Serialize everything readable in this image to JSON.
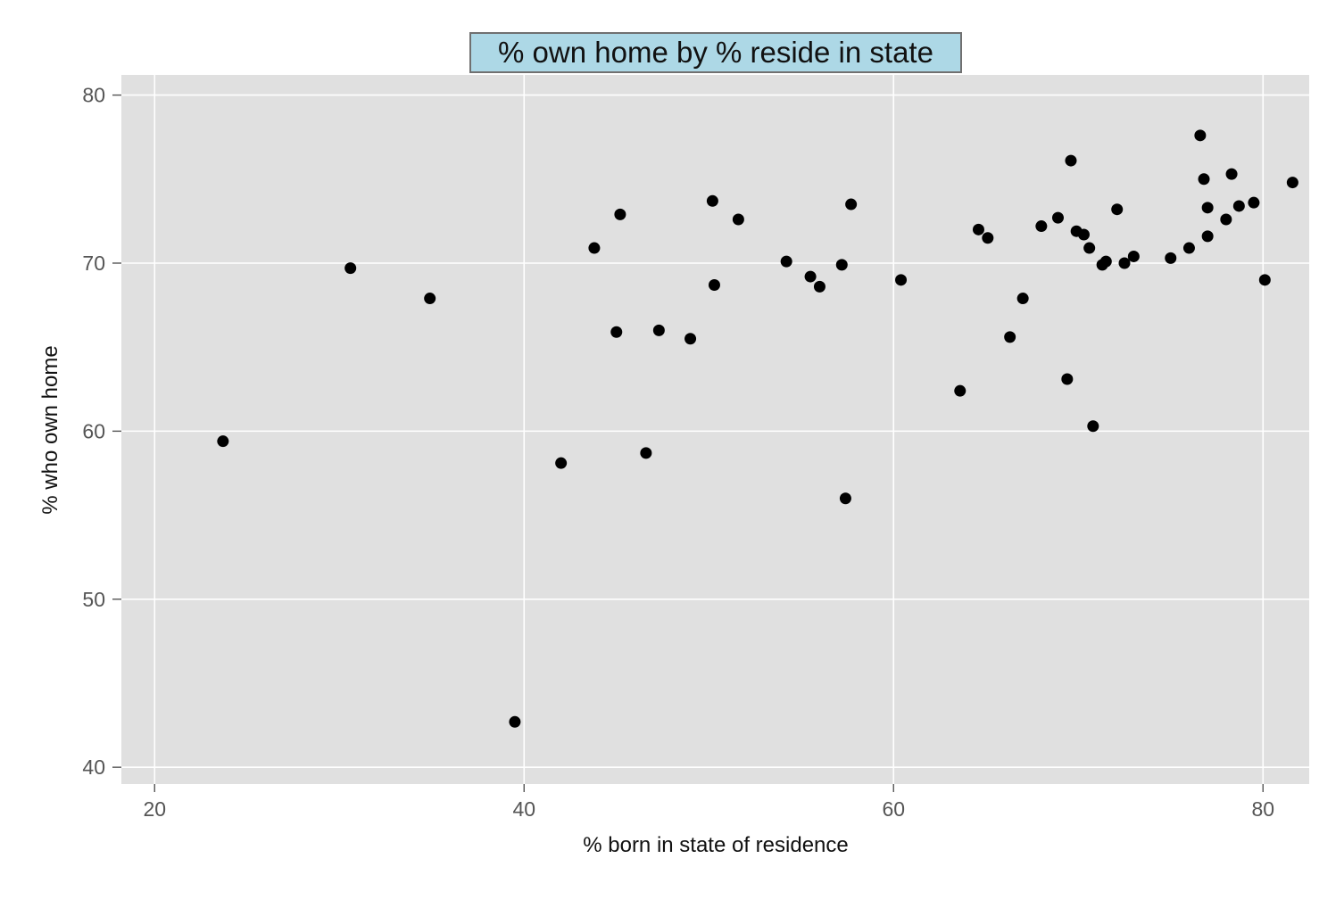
{
  "chart_data": {
    "type": "scatter",
    "title": "% own home by % reside in state",
    "xlabel": "% born in state of residence",
    "ylabel": "% who own home",
    "xlim": [
      18.2,
      82.5
    ],
    "ylim": [
      39.0,
      81.2
    ],
    "xticks": [
      20,
      40,
      60,
      80
    ],
    "yticks": [
      40,
      50,
      60,
      70,
      80
    ],
    "grid": true,
    "legend": "none",
    "colors": {
      "panel": "#e0e0e0",
      "grid": "#ffffff",
      "point": "#000000",
      "title_fill": "#add8e6",
      "title_border": "#707070",
      "axis_text": "#555555",
      "label_text": "#111111"
    },
    "points": [
      {
        "x": 23.7,
        "y": 59.4
      },
      {
        "x": 30.6,
        "y": 69.7
      },
      {
        "x": 34.9,
        "y": 67.9
      },
      {
        "x": 39.5,
        "y": 42.7
      },
      {
        "x": 42.0,
        "y": 58.1
      },
      {
        "x": 43.8,
        "y": 70.9
      },
      {
        "x": 45.0,
        "y": 65.9
      },
      {
        "x": 45.2,
        "y": 72.9
      },
      {
        "x": 46.6,
        "y": 58.7
      },
      {
        "x": 47.3,
        "y": 66.0
      },
      {
        "x": 49.0,
        "y": 65.5
      },
      {
        "x": 50.2,
        "y": 73.7
      },
      {
        "x": 50.3,
        "y": 68.7
      },
      {
        "x": 51.6,
        "y": 72.6
      },
      {
        "x": 54.2,
        "y": 70.1
      },
      {
        "x": 55.5,
        "y": 69.2
      },
      {
        "x": 56.0,
        "y": 68.6
      },
      {
        "x": 57.2,
        "y": 69.9
      },
      {
        "x": 57.4,
        "y": 56.0
      },
      {
        "x": 57.7,
        "y": 73.5
      },
      {
        "x": 60.4,
        "y": 69.0
      },
      {
        "x": 63.6,
        "y": 62.4
      },
      {
        "x": 64.6,
        "y": 72.0
      },
      {
        "x": 65.1,
        "y": 71.5
      },
      {
        "x": 66.3,
        "y": 65.6
      },
      {
        "x": 67.0,
        "y": 67.9
      },
      {
        "x": 68.0,
        "y": 72.2
      },
      {
        "x": 68.9,
        "y": 72.7
      },
      {
        "x": 69.4,
        "y": 63.1
      },
      {
        "x": 69.6,
        "y": 76.1
      },
      {
        "x": 69.9,
        "y": 71.9
      },
      {
        "x": 70.3,
        "y": 71.7
      },
      {
        "x": 70.6,
        "y": 70.9
      },
      {
        "x": 70.8,
        "y": 60.3
      },
      {
        "x": 71.3,
        "y": 69.9
      },
      {
        "x": 71.5,
        "y": 70.1
      },
      {
        "x": 72.1,
        "y": 73.2
      },
      {
        "x": 72.5,
        "y": 70.0
      },
      {
        "x": 73.0,
        "y": 70.4
      },
      {
        "x": 75.0,
        "y": 70.3
      },
      {
        "x": 76.0,
        "y": 70.9
      },
      {
        "x": 76.6,
        "y": 77.6
      },
      {
        "x": 76.8,
        "y": 75.0
      },
      {
        "x": 77.0,
        "y": 73.3
      },
      {
        "x": 77.0,
        "y": 71.6
      },
      {
        "x": 78.0,
        "y": 72.6
      },
      {
        "x": 78.3,
        "y": 75.3
      },
      {
        "x": 78.7,
        "y": 73.4
      },
      {
        "x": 79.5,
        "y": 73.6
      },
      {
        "x": 80.1,
        "y": 69.0
      },
      {
        "x": 81.6,
        "y": 74.8
      }
    ]
  }
}
